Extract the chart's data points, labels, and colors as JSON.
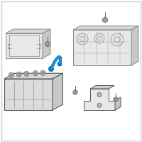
{
  "background_color": "#ffffff",
  "border_color": "#cccccc",
  "line_color": "#888888",
  "dark_line": "#555555",
  "blue_color": "#1e8fcc",
  "fill_color": "#f0f0f0",
  "light_fill": "#e8e8e8",
  "screw_color": "#aaaaaa",
  "fig_size": [
    2.0,
    2.0
  ],
  "dpi": 100
}
